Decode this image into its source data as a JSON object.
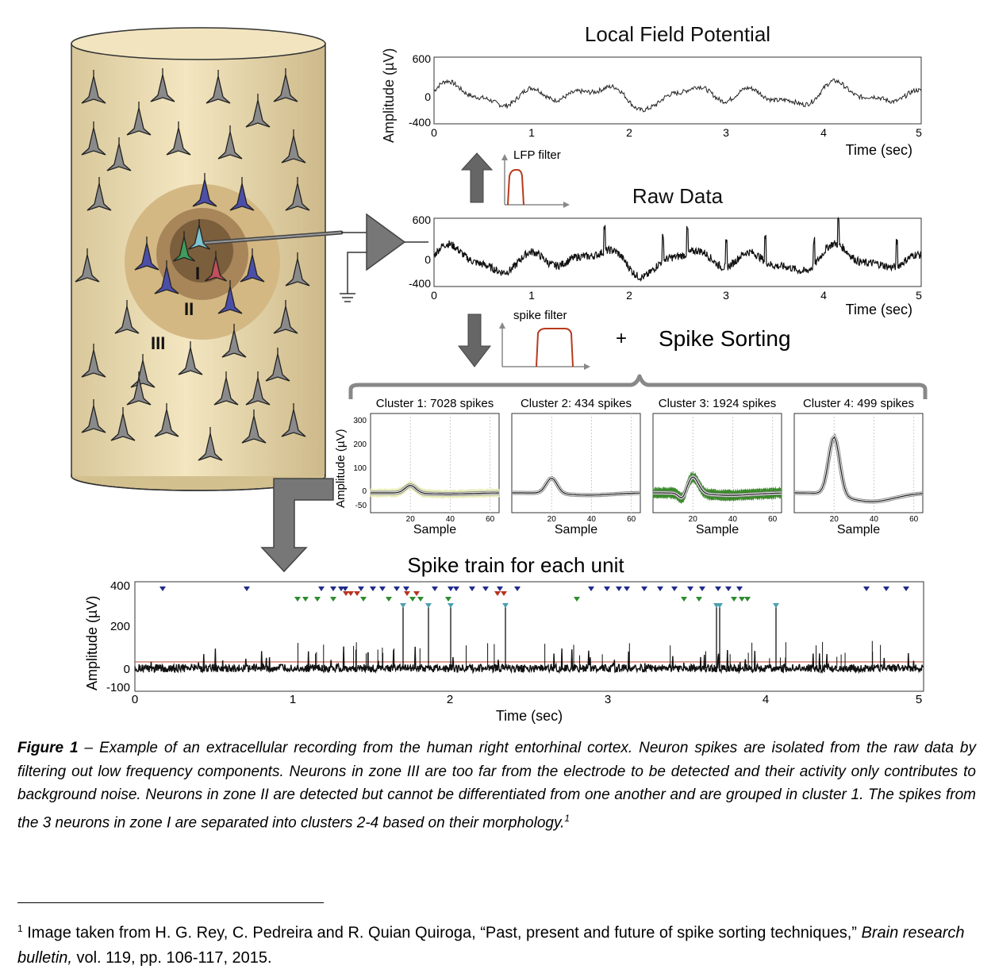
{
  "figure": {
    "zones": {
      "z1": "I",
      "z2": "II",
      "z3": "III"
    },
    "lfp": {
      "title": "Local Field Potential",
      "yticks": [
        "600",
        "0",
        "-400"
      ],
      "xticks": [
        "0",
        "1",
        "2",
        "3",
        "4",
        "5"
      ],
      "xlabel": "Time (sec)"
    },
    "raw": {
      "title": "Raw Data",
      "yticks": [
        "600",
        "0",
        "-400"
      ],
      "xticks": [
        "0",
        "1",
        "2",
        "3",
        "4",
        "5"
      ],
      "xlabel": "Time (sec)"
    },
    "top_ylabel": "Amplitude (µV)",
    "filters": {
      "lfp_label": "LFP filter",
      "spike_label": "spike filter",
      "plus": "+",
      "spike_sorting": "Spike Sorting"
    },
    "clusters": {
      "ylabel": "Amplitude (µV)",
      "yticks": [
        "300",
        "200",
        "100",
        "0",
        "-50"
      ],
      "xticks": [
        "20",
        "40",
        "60"
      ],
      "xlabel": "Sample",
      "titles": [
        "Cluster 1: 7028 spikes",
        "Cluster 2: 434 spikes",
        "Cluster 3: 1924 spikes",
        "Cluster 4: 499 spikes"
      ],
      "colors": [
        "#e8ebb8",
        "#ffffff",
        "#3a8a2a",
        "#ffffff"
      ]
    },
    "train": {
      "title": "Spike train for each unit",
      "ylabel": "Amplitude (µV)",
      "yticks": [
        "400",
        "200",
        "0",
        "-100"
      ],
      "xticks": [
        "0",
        "1",
        "2",
        "3",
        "4",
        "5"
      ],
      "xlabel": "Time (sec)",
      "unit_colors": [
        "#1f2a8a",
        "#2e8b2e",
        "#b83220",
        "#4a9fb0"
      ]
    }
  },
  "caption": {
    "label": "Figure 1",
    "text": " – Example of an extracellular recording from the human right entorhinal cortex. Neuron spikes are isolated from the raw data by filtering out low frequency components. Neurons in zone III are too far from the electrode to be detected and their activity only contributes to background noise. Neurons in zone II are detected but cannot be differentiated from one another and are grouped in cluster 1. The spikes from the 3 neurons in zone I are separated into clusters 2-4 based on their morphology.",
    "ref_mark": "1"
  },
  "footnote": {
    "mark": "1",
    "text_before": " Image taken from H. G. Rey, C. Pedreira and R. Quian Quiroga, “Past, present and future of spike sorting techniques,” ",
    "journal": "Brain research bulletin,",
    "text_after": " vol. 119, pp. 106-117, 2015."
  }
}
